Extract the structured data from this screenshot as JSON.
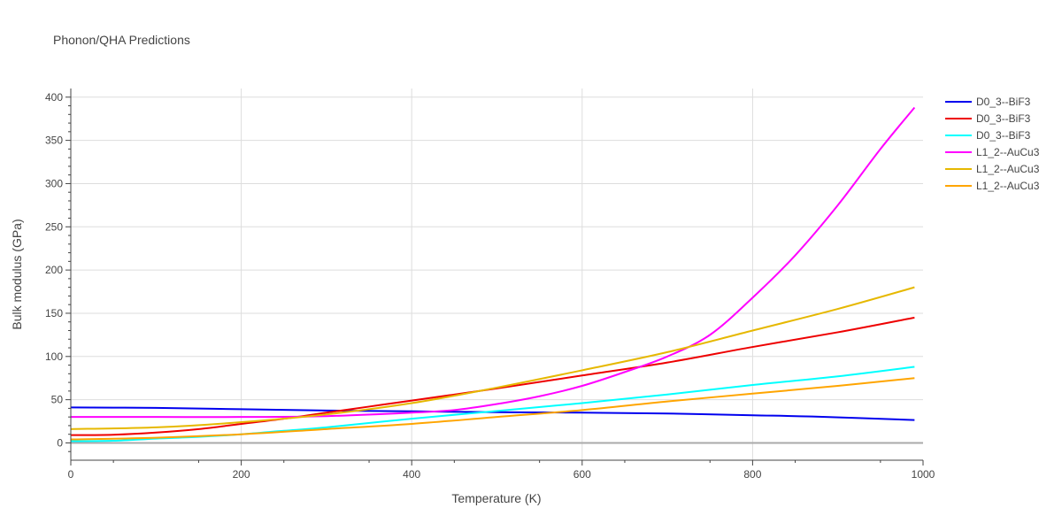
{
  "chart_data": {
    "type": "line",
    "title": "Phonon/QHA Predictions",
    "xlabel": "Temperature (K)",
    "ylabel": "Bulk modulus (GPa)",
    "xlim": [
      0,
      1000
    ],
    "ylim": [
      -20,
      410
    ],
    "xticks": [
      0,
      200,
      400,
      600,
      800,
      1000
    ],
    "yticks": [
      0,
      50,
      100,
      150,
      200,
      250,
      300,
      350,
      400
    ],
    "grid": true,
    "legend_position": "top-right",
    "series": [
      {
        "name": "D0_3--BiF3",
        "color": "#0000ee",
        "points": [
          [
            0,
            41
          ],
          [
            100,
            40.5
          ],
          [
            200,
            39
          ],
          [
            300,
            37.5
          ],
          [
            400,
            36.5
          ],
          [
            500,
            35.5
          ],
          [
            600,
            35
          ],
          [
            700,
            34
          ],
          [
            800,
            32
          ],
          [
            870,
            30.5
          ],
          [
            990,
            26.5
          ]
        ]
      },
      {
        "name": "D0_3--BiF3",
        "color": "#ee0000",
        "points": [
          [
            0,
            9
          ],
          [
            50,
            9.5
          ],
          [
            100,
            12
          ],
          [
            150,
            16
          ],
          [
            200,
            22
          ],
          [
            250,
            28
          ],
          [
            300,
            35
          ],
          [
            350,
            42
          ],
          [
            400,
            49
          ],
          [
            500,
            63
          ],
          [
            600,
            78
          ],
          [
            700,
            93
          ],
          [
            800,
            111
          ],
          [
            900,
            128
          ],
          [
            990,
            145
          ]
        ]
      },
      {
        "name": "D0_3--BiF3",
        "color": "#00ffff",
        "points": [
          [
            0,
            2
          ],
          [
            50,
            2.5
          ],
          [
            100,
            5
          ],
          [
            150,
            7
          ],
          [
            200,
            10
          ],
          [
            250,
            14
          ],
          [
            300,
            18
          ],
          [
            400,
            28
          ],
          [
            500,
            37
          ],
          [
            600,
            46
          ],
          [
            700,
            56
          ],
          [
            800,
            67
          ],
          [
            900,
            77
          ],
          [
            990,
            88
          ]
        ]
      },
      {
        "name": "L1_2--AuCu3",
        "color": "#ff00ff",
        "points": [
          [
            0,
            30
          ],
          [
            100,
            30
          ],
          [
            200,
            30
          ],
          [
            300,
            31
          ],
          [
            400,
            35
          ],
          [
            450,
            38
          ],
          [
            500,
            45
          ],
          [
            550,
            54
          ],
          [
            600,
            66
          ],
          [
            650,
            82
          ],
          [
            700,
            100
          ],
          [
            750,
            125
          ],
          [
            800,
            168
          ],
          [
            850,
            217
          ],
          [
            900,
            275
          ],
          [
            950,
            340
          ],
          [
            990,
            388
          ]
        ]
      },
      {
        "name": "L1_2--AuCu3",
        "color": "#e6b800",
        "points": [
          [
            0,
            16
          ],
          [
            100,
            18
          ],
          [
            200,
            24
          ],
          [
            300,
            33
          ],
          [
            400,
            46
          ],
          [
            500,
            64
          ],
          [
            600,
            84
          ],
          [
            700,
            105
          ],
          [
            800,
            130
          ],
          [
            900,
            155
          ],
          [
            990,
            180
          ]
        ]
      },
      {
        "name": "L1_2--AuCu3",
        "color": "#ffa500",
        "points": [
          [
            0,
            4
          ],
          [
            100,
            6
          ],
          [
            200,
            10
          ],
          [
            300,
            16
          ],
          [
            400,
            22
          ],
          [
            500,
            30
          ],
          [
            600,
            38
          ],
          [
            700,
            48
          ],
          [
            800,
            57
          ],
          [
            900,
            66
          ],
          [
            990,
            75
          ]
        ]
      }
    ]
  }
}
